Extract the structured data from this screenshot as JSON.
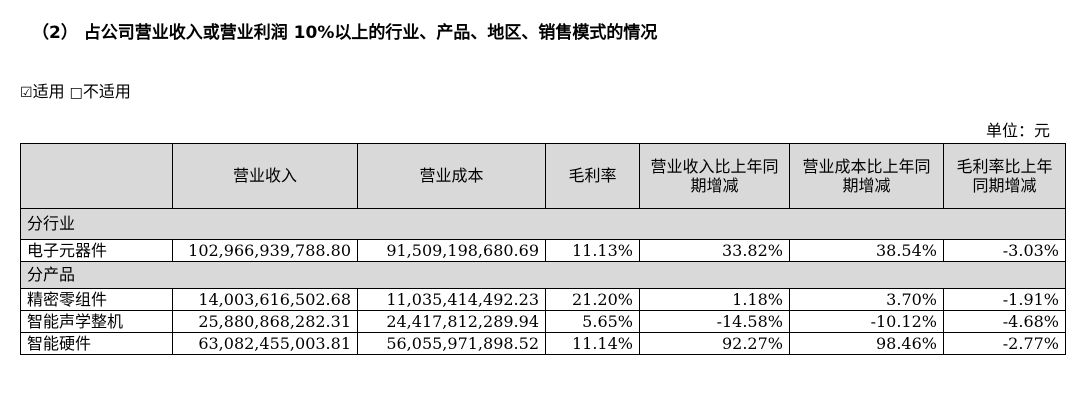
{
  "heading": "（2） 占公司营业收入或营业利润 10%以上的行业、产品、地区、销售模式的情况",
  "applicability": {
    "checked_box": "☑",
    "checked_label": "适用",
    "unchecked_box": "□",
    "unchecked_label": "不适用"
  },
  "unit": "单位：元",
  "table": {
    "headers": [
      "",
      "营业收入",
      "营业成本",
      "毛利率",
      "营业收入比上年同期增减",
      "营业成本比上年同期增减",
      "毛利率比上年同期增减"
    ],
    "sections": [
      {
        "title": "分行业",
        "rows": [
          [
            "电子元器件",
            "102,966,939,788.80",
            "91,509,198,680.69",
            "11.13%",
            "33.82%",
            "38.54%",
            "-3.03%"
          ]
        ]
      },
      {
        "title": "分产品",
        "rows": [
          [
            "精密零组件",
            "14,003,616,502.68",
            "11,035,414,492.23",
            "21.20%",
            "1.18%",
            "3.70%",
            "-1.91%"
          ],
          [
            "智能声学整机",
            "25,880,868,282.31",
            "24,417,812,289.94",
            "5.65%",
            "-14.58%",
            "-10.12%",
            "-4.68%"
          ],
          [
            "智能硬件",
            "63,082,455,003.81",
            "56,055,971,898.52",
            "11.14%",
            "92.27%",
            "98.46%",
            "-2.77%"
          ]
        ]
      }
    ]
  }
}
